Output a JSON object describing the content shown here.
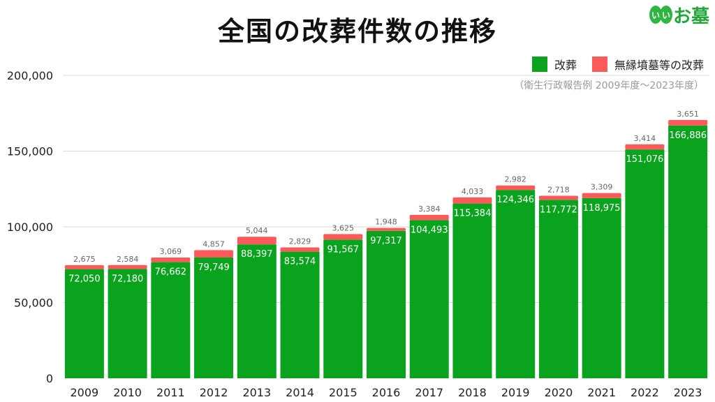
{
  "title": "全国の改葬件数の推移",
  "logo": {
    "mark": [
      "い",
      "い"
    ],
    "text": "お墓"
  },
  "legend": {
    "series1": "改葬",
    "series2": "無縁墳墓等の改葬"
  },
  "source": "（衛生行政報告例 2009年度～2023年度）",
  "colors": {
    "green": "#09a31e",
    "red": "#fc5a5a",
    "grid": "#d9d9d9"
  },
  "chart_data": {
    "type": "bar",
    "stacked": true,
    "title": "全国の改葬件数の推移",
    "categories": [
      "2009",
      "2010",
      "2011",
      "2012",
      "2013",
      "2014",
      "2015",
      "2016",
      "2017",
      "2018",
      "2019",
      "2020",
      "2021",
      "2022",
      "2023"
    ],
    "series": [
      {
        "name": "改葬",
        "color": "#09a31e",
        "values": [
          72050,
          72180,
          76662,
          79749,
          88397,
          83574,
          91567,
          97317,
          104493,
          115384,
          124346,
          117772,
          118975,
          151076,
          166886
        ]
      },
      {
        "name": "無縁墳墓等の改葬",
        "color": "#fc5a5a",
        "values": [
          2675,
          2584,
          3069,
          4857,
          5044,
          2829,
          3625,
          1948,
          3384,
          4033,
          2982,
          2718,
          3309,
          3414,
          3651
        ]
      }
    ],
    "ylim": [
      0,
      200000
    ],
    "yticks": [
      0,
      50000,
      100000,
      150000,
      200000
    ],
    "ytick_labels": [
      "0",
      "50,000",
      "100,000",
      "150,000",
      "200,000"
    ],
    "grid": true,
    "legend_position": "top-right"
  }
}
